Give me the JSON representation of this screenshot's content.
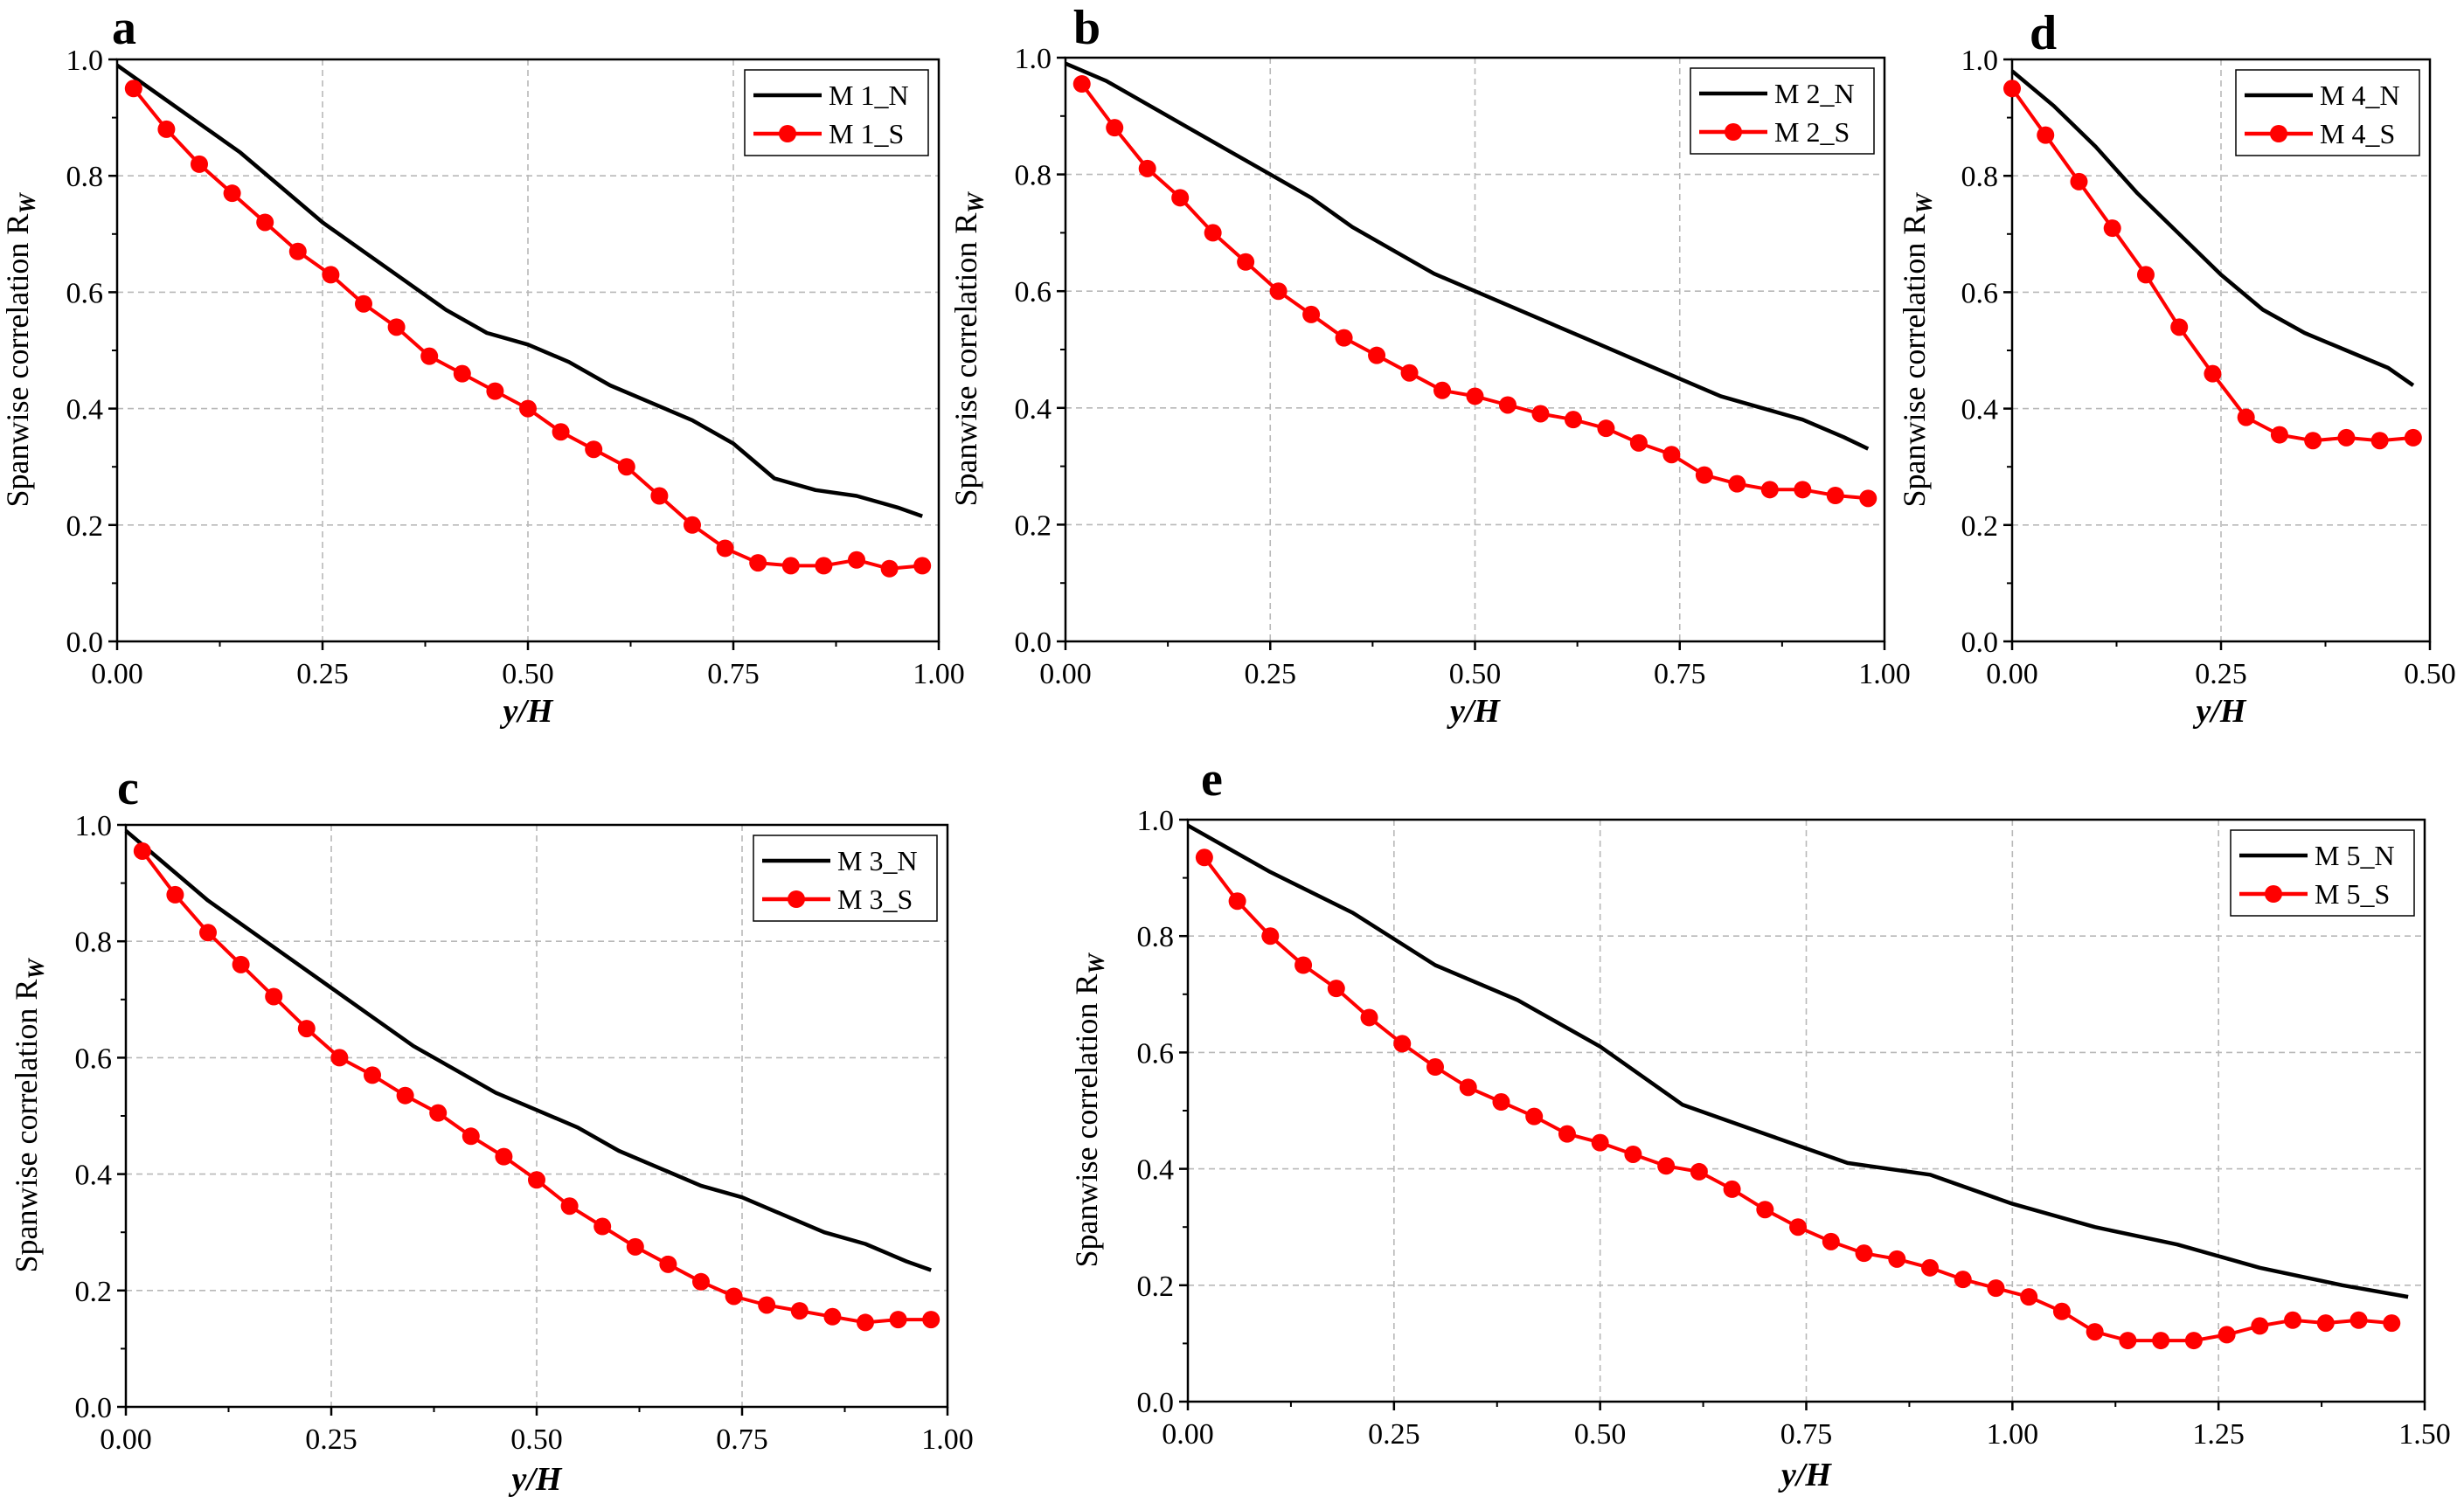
{
  "chart_data": [
    {
      "panel": "a",
      "type": "line",
      "xlabel": "y/H",
      "ylabel": "Spanwise correlation R",
      "ylabel_subscript": "W",
      "xlim": [
        0,
        1.0
      ],
      "ylim": [
        0,
        1.0
      ],
      "xticks": [
        0,
        0.25,
        0.5,
        0.75,
        1.0
      ],
      "xtick_labels": [
        "0.00",
        "0.25",
        "0.50",
        "0.75",
        "1.00"
      ],
      "yticks": [
        0,
        0.2,
        0.4,
        0.6,
        0.8,
        1.0
      ],
      "ytick_labels": [
        "0.0",
        "0.2",
        "0.4",
        "0.6",
        "0.8",
        "1.0"
      ],
      "grid": true,
      "legend_position": "top-right",
      "series": [
        {
          "name": "M 1_N",
          "color": "#000000",
          "markers": false,
          "x": [
            0,
            0.05,
            0.1,
            0.15,
            0.2,
            0.25,
            0.3,
            0.35,
            0.4,
            0.45,
            0.5,
            0.55,
            0.6,
            0.65,
            0.7,
            0.75,
            0.8,
            0.85,
            0.9,
            0.95,
            0.98
          ],
          "y": [
            0.99,
            0.94,
            0.89,
            0.84,
            0.78,
            0.72,
            0.67,
            0.62,
            0.57,
            0.53,
            0.51,
            0.48,
            0.44,
            0.41,
            0.38,
            0.34,
            0.28,
            0.26,
            0.25,
            0.23,
            0.215
          ]
        },
        {
          "name": "M 1_S",
          "color": "#ff0000",
          "markers": true,
          "x": [
            0.02,
            0.06,
            0.1,
            0.14,
            0.18,
            0.22,
            0.26,
            0.3,
            0.34,
            0.38,
            0.42,
            0.46,
            0.5,
            0.54,
            0.58,
            0.62,
            0.66,
            0.7,
            0.74,
            0.78,
            0.82,
            0.86,
            0.9,
            0.94,
            0.98
          ],
          "y": [
            0.95,
            0.88,
            0.82,
            0.77,
            0.72,
            0.67,
            0.63,
            0.58,
            0.54,
            0.49,
            0.46,
            0.43,
            0.4,
            0.36,
            0.33,
            0.3,
            0.25,
            0.2,
            0.16,
            0.135,
            0.13,
            0.13,
            0.14,
            0.125,
            0.13
          ]
        }
      ]
    },
    {
      "panel": "b",
      "type": "line",
      "xlabel": "y/H",
      "ylabel": "Spanwise correlation R",
      "ylabel_subscript": "W",
      "xlim": [
        0,
        1.0
      ],
      "ylim": [
        0,
        1.0
      ],
      "xticks": [
        0,
        0.25,
        0.5,
        0.75,
        1.0
      ],
      "xtick_labels": [
        "0.00",
        "0.25",
        "0.50",
        "0.75",
        "1.00"
      ],
      "yticks": [
        0,
        0.2,
        0.4,
        0.6,
        0.8,
        1.0
      ],
      "ytick_labels": [
        "0.0",
        "0.2",
        "0.4",
        "0.6",
        "0.8",
        "1.0"
      ],
      "grid": true,
      "legend_position": "top-right",
      "series": [
        {
          "name": "M 2_N",
          "color": "#000000",
          "markers": false,
          "x": [
            0,
            0.05,
            0.1,
            0.15,
            0.2,
            0.25,
            0.3,
            0.35,
            0.4,
            0.45,
            0.5,
            0.55,
            0.6,
            0.65,
            0.7,
            0.75,
            0.8,
            0.85,
            0.9,
            0.95,
            0.98
          ],
          "y": [
            0.99,
            0.96,
            0.92,
            0.88,
            0.84,
            0.8,
            0.76,
            0.71,
            0.67,
            0.63,
            0.6,
            0.57,
            0.54,
            0.51,
            0.48,
            0.45,
            0.42,
            0.4,
            0.38,
            0.35,
            0.33
          ]
        },
        {
          "name": "M 2_S",
          "color": "#ff0000",
          "markers": true,
          "x": [
            0.02,
            0.06,
            0.1,
            0.14,
            0.18,
            0.22,
            0.26,
            0.3,
            0.34,
            0.38,
            0.42,
            0.46,
            0.5,
            0.54,
            0.58,
            0.62,
            0.66,
            0.7,
            0.74,
            0.78,
            0.82,
            0.86,
            0.9,
            0.94,
            0.98
          ],
          "y": [
            0.955,
            0.88,
            0.81,
            0.76,
            0.7,
            0.65,
            0.6,
            0.56,
            0.52,
            0.49,
            0.46,
            0.43,
            0.42,
            0.405,
            0.39,
            0.38,
            0.365,
            0.34,
            0.32,
            0.285,
            0.27,
            0.26,
            0.26,
            0.25,
            0.245
          ]
        }
      ]
    },
    {
      "panel": "d",
      "type": "line",
      "xlabel": "y/H",
      "ylabel": "Spanwise correlation R",
      "ylabel_subscript": "W",
      "xlim": [
        0,
        0.5
      ],
      "ylim": [
        0,
        1.0
      ],
      "xticks": [
        0,
        0.25,
        0.5
      ],
      "xtick_labels": [
        "0.00",
        "0.25",
        "0.50"
      ],
      "yticks": [
        0,
        0.2,
        0.4,
        0.6,
        0.8,
        1.0
      ],
      "ytick_labels": [
        "0.0",
        "0.2",
        "0.4",
        "0.6",
        "0.8",
        "1.0"
      ],
      "grid": true,
      "legend_position": "top-right",
      "series": [
        {
          "name": "M 4_N",
          "color": "#000000",
          "markers": false,
          "x": [
            0,
            0.05,
            0.1,
            0.15,
            0.2,
            0.25,
            0.3,
            0.35,
            0.4,
            0.45,
            0.48
          ],
          "y": [
            0.98,
            0.92,
            0.85,
            0.77,
            0.7,
            0.63,
            0.57,
            0.53,
            0.5,
            0.47,
            0.44
          ]
        },
        {
          "name": "M 4_S",
          "color": "#ff0000",
          "markers": true,
          "x": [
            0,
            0.04,
            0.08,
            0.12,
            0.16,
            0.2,
            0.24,
            0.28,
            0.32,
            0.36,
            0.4,
            0.44,
            0.48
          ],
          "y": [
            0.95,
            0.87,
            0.79,
            0.71,
            0.63,
            0.54,
            0.46,
            0.385,
            0.355,
            0.345,
            0.35,
            0.345,
            0.35
          ]
        }
      ]
    },
    {
      "panel": "c",
      "type": "line",
      "xlabel": "y/H",
      "ylabel": "Spanwise correlation R",
      "ylabel_subscript": "W",
      "xlim": [
        0,
        1.0
      ],
      "ylim": [
        0,
        1.0
      ],
      "xticks": [
        0,
        0.25,
        0.5,
        0.75,
        1.0
      ],
      "xtick_labels": [
        "0.00",
        "0.25",
        "0.50",
        "0.75",
        "1.00"
      ],
      "yticks": [
        0,
        0.2,
        0.4,
        0.6,
        0.8,
        1.0
      ],
      "ytick_labels": [
        "0.0",
        "0.2",
        "0.4",
        "0.6",
        "0.8",
        "1.0"
      ],
      "grid": true,
      "legend_position": "top-right",
      "series": [
        {
          "name": "M 3_N",
          "color": "#000000",
          "markers": false,
          "x": [
            0,
            0.05,
            0.1,
            0.15,
            0.2,
            0.25,
            0.3,
            0.35,
            0.4,
            0.45,
            0.5,
            0.55,
            0.6,
            0.65,
            0.7,
            0.75,
            0.8,
            0.85,
            0.9,
            0.95,
            0.98
          ],
          "y": [
            0.99,
            0.93,
            0.87,
            0.82,
            0.77,
            0.72,
            0.67,
            0.62,
            0.58,
            0.54,
            0.51,
            0.48,
            0.44,
            0.41,
            0.38,
            0.36,
            0.33,
            0.3,
            0.28,
            0.25,
            0.235
          ]
        },
        {
          "name": "M 3_S",
          "color": "#ff0000",
          "markers": true,
          "x": [
            0.02,
            0.06,
            0.1,
            0.14,
            0.18,
            0.22,
            0.26,
            0.3,
            0.34,
            0.38,
            0.42,
            0.46,
            0.5,
            0.54,
            0.58,
            0.62,
            0.66,
            0.7,
            0.74,
            0.78,
            0.82,
            0.86,
            0.9,
            0.94,
            0.98
          ],
          "y": [
            0.955,
            0.88,
            0.815,
            0.76,
            0.705,
            0.65,
            0.6,
            0.57,
            0.535,
            0.505,
            0.465,
            0.43,
            0.39,
            0.345,
            0.31,
            0.275,
            0.245,
            0.215,
            0.19,
            0.175,
            0.165,
            0.155,
            0.145,
            0.15,
            0.15
          ]
        }
      ]
    },
    {
      "panel": "e",
      "type": "line",
      "xlabel": "y/H",
      "ylabel": "Spanwise correlation R",
      "ylabel_subscript": "W",
      "xlim": [
        0,
        1.5
      ],
      "ylim": [
        0,
        1.0
      ],
      "xticks": [
        0,
        0.25,
        0.5,
        0.75,
        1.0,
        1.25,
        1.5
      ],
      "xtick_labels": [
        "0.00",
        "0.25",
        "0.50",
        "0.75",
        "1.00",
        "1.25",
        "1.50"
      ],
      "yticks": [
        0,
        0.2,
        0.4,
        0.6,
        0.8,
        1.0
      ],
      "ytick_labels": [
        "0.0",
        "0.2",
        "0.4",
        "0.6",
        "0.8",
        "1.0"
      ],
      "grid": true,
      "legend_position": "top-right",
      "series": [
        {
          "name": "M 5_N",
          "color": "#000000",
          "markers": false,
          "x": [
            0,
            0.1,
            0.2,
            0.3,
            0.4,
            0.5,
            0.6,
            0.7,
            0.8,
            0.9,
            1.0,
            1.1,
            1.2,
            1.3,
            1.4,
            1.48
          ],
          "y": [
            0.99,
            0.91,
            0.84,
            0.75,
            0.69,
            0.61,
            0.51,
            0.46,
            0.41,
            0.39,
            0.34,
            0.3,
            0.27,
            0.23,
            0.2,
            0.18
          ]
        },
        {
          "name": "M 5_S",
          "color": "#ff0000",
          "markers": true,
          "x": [
            0.02,
            0.06,
            0.1,
            0.14,
            0.18,
            0.22,
            0.26,
            0.3,
            0.34,
            0.38,
            0.42,
            0.46,
            0.5,
            0.54,
            0.58,
            0.62,
            0.66,
            0.7,
            0.74,
            0.78,
            0.82,
            0.86,
            0.9,
            0.94,
            0.98,
            1.02,
            1.06,
            1.1,
            1.14,
            1.18,
            1.22,
            1.26,
            1.3,
            1.34,
            1.38,
            1.42,
            1.46
          ],
          "y": [
            0.935,
            0.86,
            0.8,
            0.75,
            0.71,
            0.66,
            0.615,
            0.575,
            0.54,
            0.515,
            0.49,
            0.46,
            0.445,
            0.425,
            0.405,
            0.395,
            0.365,
            0.33,
            0.3,
            0.275,
            0.255,
            0.245,
            0.23,
            0.21,
            0.195,
            0.18,
            0.155,
            0.12,
            0.105,
            0.105,
            0.105,
            0.115,
            0.13,
            0.14,
            0.135,
            0.14,
            0.135
          ]
        }
      ]
    }
  ]
}
